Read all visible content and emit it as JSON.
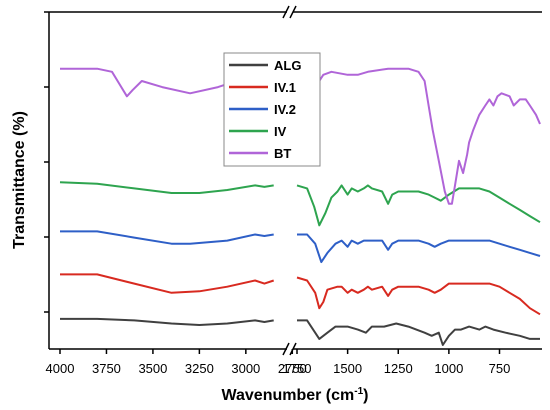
{
  "chart_data": {
    "type": "line",
    "title": "",
    "xlabel": "Wavenumber (cm",
    "xlabel_sup": "-1",
    "xlabel_tail": ")",
    "ylabel": "Transmittance (%)",
    "x_axis_reversed": true,
    "x_axis_broken": true,
    "x_segments": [
      {
        "xlim": [
          4000,
          2800
        ],
        "ticks": [
          4000,
          3750,
          3500,
          3250,
          3000,
          2750
        ]
      },
      {
        "xlim": [
          1750,
          550
        ],
        "ticks": [
          1750,
          1500,
          1250,
          1000,
          750
        ]
      }
    ],
    "ylim": [
      0,
      100
    ],
    "y_tick_labels_shown": false,
    "grid": false,
    "legend_position": "top-center",
    "series": [
      {
        "name": "ALG",
        "color": "#404040",
        "seg1": [
          [
            4000,
            8.5
          ],
          [
            3800,
            8.5
          ],
          [
            3600,
            8
          ],
          [
            3400,
            7
          ],
          [
            3250,
            6.5
          ],
          [
            3100,
            7
          ],
          [
            2950,
            8
          ],
          [
            2900,
            7.5
          ],
          [
            2850,
            8
          ]
        ],
        "seg2": [
          [
            1750,
            8
          ],
          [
            1700,
            8
          ],
          [
            1640,
            2
          ],
          [
            1600,
            4
          ],
          [
            1560,
            6
          ],
          [
            1500,
            6
          ],
          [
            1450,
            5
          ],
          [
            1410,
            4
          ],
          [
            1380,
            6
          ],
          [
            1320,
            6
          ],
          [
            1260,
            7
          ],
          [
            1200,
            6
          ],
          [
            1120,
            4
          ],
          [
            1085,
            3
          ],
          [
            1050,
            4
          ],
          [
            1030,
            0
          ],
          [
            1000,
            3
          ],
          [
            970,
            5
          ],
          [
            940,
            5
          ],
          [
            900,
            6
          ],
          [
            850,
            5
          ],
          [
            820,
            6
          ],
          [
            780,
            5
          ],
          [
            720,
            4
          ],
          [
            650,
            3
          ],
          [
            600,
            2
          ],
          [
            550,
            2
          ]
        ]
      },
      {
        "name": "IV.1",
        "color": "#d82a20",
        "seg1": [
          [
            4000,
            23
          ],
          [
            3800,
            23
          ],
          [
            3600,
            20
          ],
          [
            3400,
            17
          ],
          [
            3250,
            17.5
          ],
          [
            3100,
            19
          ],
          [
            2950,
            21
          ],
          [
            2900,
            20
          ],
          [
            2850,
            21
          ]
        ],
        "seg2": [
          [
            1750,
            22
          ],
          [
            1700,
            21
          ],
          [
            1660,
            17
          ],
          [
            1640,
            12
          ],
          [
            1620,
            14
          ],
          [
            1600,
            18
          ],
          [
            1550,
            19
          ],
          [
            1530,
            19
          ],
          [
            1500,
            17
          ],
          [
            1480,
            18
          ],
          [
            1450,
            17
          ],
          [
            1420,
            18
          ],
          [
            1400,
            19
          ],
          [
            1380,
            18
          ],
          [
            1330,
            19
          ],
          [
            1300,
            16
          ],
          [
            1280,
            18
          ],
          [
            1250,
            19
          ],
          [
            1150,
            19
          ],
          [
            1100,
            18
          ],
          [
            1070,
            17
          ],
          [
            1040,
            18
          ],
          [
            1000,
            20
          ],
          [
            950,
            20
          ],
          [
            900,
            20
          ],
          [
            850,
            20
          ],
          [
            800,
            20
          ],
          [
            750,
            19
          ],
          [
            700,
            17
          ],
          [
            650,
            15
          ],
          [
            600,
            12
          ],
          [
            550,
            10
          ]
        ]
      },
      {
        "name": "IV.2",
        "color": "#2e5fc7",
        "seg1": [
          [
            4000,
            37
          ],
          [
            3800,
            37
          ],
          [
            3600,
            35
          ],
          [
            3400,
            33
          ],
          [
            3300,
            33
          ],
          [
            3100,
            34
          ],
          [
            2950,
            36
          ],
          [
            2900,
            35.5
          ],
          [
            2850,
            36
          ]
        ],
        "seg2": [
          [
            1750,
            36
          ],
          [
            1700,
            36
          ],
          [
            1660,
            33
          ],
          [
            1630,
            27
          ],
          [
            1600,
            30
          ],
          [
            1560,
            33
          ],
          [
            1530,
            34
          ],
          [
            1500,
            32
          ],
          [
            1480,
            34
          ],
          [
            1450,
            33
          ],
          [
            1420,
            34
          ],
          [
            1400,
            34
          ],
          [
            1380,
            34
          ],
          [
            1330,
            34
          ],
          [
            1300,
            31
          ],
          [
            1280,
            33
          ],
          [
            1250,
            34
          ],
          [
            1150,
            34
          ],
          [
            1100,
            33
          ],
          [
            1070,
            32
          ],
          [
            1040,
            33
          ],
          [
            1000,
            34
          ],
          [
            950,
            34
          ],
          [
            900,
            34
          ],
          [
            850,
            34
          ],
          [
            800,
            34
          ],
          [
            750,
            33
          ],
          [
            700,
            32
          ],
          [
            650,
            31
          ],
          [
            600,
            30
          ],
          [
            550,
            29
          ]
        ]
      },
      {
        "name": "IV",
        "color": "#2ea44f",
        "seg1": [
          [
            4000,
            53
          ],
          [
            3800,
            52.5
          ],
          [
            3600,
            51
          ],
          [
            3400,
            49.5
          ],
          [
            3250,
            49.5
          ],
          [
            3100,
            50.5
          ],
          [
            2950,
            52
          ],
          [
            2900,
            51.5
          ],
          [
            2850,
            52
          ]
        ],
        "seg2": [
          [
            1750,
            52
          ],
          [
            1700,
            51
          ],
          [
            1665,
            45
          ],
          [
            1640,
            39
          ],
          [
            1610,
            43
          ],
          [
            1580,
            48
          ],
          [
            1550,
            50
          ],
          [
            1530,
            52
          ],
          [
            1500,
            49
          ],
          [
            1480,
            51
          ],
          [
            1450,
            50
          ],
          [
            1420,
            51
          ],
          [
            1400,
            52
          ],
          [
            1380,
            51
          ],
          [
            1330,
            50
          ],
          [
            1300,
            46
          ],
          [
            1280,
            49
          ],
          [
            1250,
            50
          ],
          [
            1150,
            50
          ],
          [
            1100,
            49
          ],
          [
            1070,
            48
          ],
          [
            1040,
            47
          ],
          [
            1000,
            49
          ],
          [
            950,
            51
          ],
          [
            900,
            51
          ],
          [
            850,
            51
          ],
          [
            800,
            50
          ],
          [
            750,
            48
          ],
          [
            700,
            46
          ],
          [
            650,
            44
          ],
          [
            600,
            42
          ],
          [
            550,
            40
          ]
        ]
      },
      {
        "name": "BT",
        "color": "#b065d8",
        "seg1": [
          [
            4000,
            90
          ],
          [
            3800,
            90
          ],
          [
            3720,
            89
          ],
          [
            3680,
            85
          ],
          [
            3640,
            81
          ],
          [
            3610,
            83
          ],
          [
            3560,
            86
          ],
          [
            3450,
            84
          ],
          [
            3300,
            82
          ],
          [
            3150,
            84
          ],
          [
            3000,
            87
          ],
          [
            2900,
            88
          ],
          [
            2850,
            89
          ]
        ],
        "seg2": [
          [
            1750,
            89
          ],
          [
            1700,
            89
          ],
          [
            1660,
            87
          ],
          [
            1640,
            86
          ],
          [
            1620,
            88
          ],
          [
            1580,
            89
          ],
          [
            1500,
            88
          ],
          [
            1450,
            88
          ],
          [
            1400,
            89
          ],
          [
            1300,
            90
          ],
          [
            1200,
            90
          ],
          [
            1150,
            89
          ],
          [
            1120,
            86
          ],
          [
            1100,
            78
          ],
          [
            1080,
            70
          ],
          [
            1050,
            60
          ],
          [
            1020,
            50
          ],
          [
            1000,
            46
          ],
          [
            985,
            46
          ],
          [
            970,
            52
          ],
          [
            950,
            60
          ],
          [
            930,
            56
          ],
          [
            910,
            62
          ],
          [
            900,
            66
          ],
          [
            880,
            70
          ],
          [
            850,
            75
          ],
          [
            820,
            78
          ],
          [
            800,
            80
          ],
          [
            780,
            78
          ],
          [
            760,
            81
          ],
          [
            740,
            82
          ],
          [
            700,
            81
          ],
          [
            680,
            78
          ],
          [
            650,
            80
          ],
          [
            620,
            80
          ],
          [
            600,
            78
          ],
          [
            570,
            75
          ],
          [
            550,
            72
          ]
        ]
      }
    ]
  }
}
